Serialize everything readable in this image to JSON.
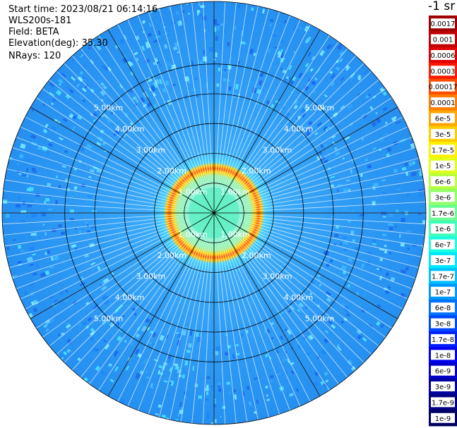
{
  "header": {
    "start_label": "Start time:",
    "start_value": "2023/08/21 06:14:16",
    "instrument": "WLS200s-181",
    "field_label": "Field:",
    "field_value": "BETA",
    "elevation_label": "Elevation(deg):",
    "elevation_value": "35.30",
    "nrays_label": "NRays:",
    "nrays_value": "120"
  },
  "colorbar": {
    "title": "-1 sr",
    "labels": [
      "0.0017",
      "0.001",
      "0.0006",
      "0.0003",
      "0.00017",
      "0.0001",
      "6e-5",
      "3e-5",
      "1.7e-5",
      "1e-5",
      "6e-6",
      "3e-6",
      "1.7e-6",
      "1e-6",
      "6e-7",
      "3e-7",
      "1.7e-7",
      "1e-7",
      "6e-8",
      "3e-8",
      "1.7e-8",
      "1e-8",
      "6e-9",
      "3e-9",
      "1.7e-9",
      "1e-9"
    ],
    "colors": [
      "#a00000",
      "#c00000",
      "#e00000",
      "#ff1800",
      "#ff4c00",
      "#ff7c00",
      "#ffa400",
      "#ffcc00",
      "#fff000",
      "#e0ff18",
      "#b8ff40",
      "#90ff68",
      "#68ff90",
      "#40ffb8",
      "#18ffe0",
      "#00e8ff",
      "#00c0ff",
      "#0098ff",
      "#0070ff",
      "#0048ff",
      "#0020ff",
      "#0000f0",
      "#0000c8",
      "#0000a0",
      "#000080",
      "#000060"
    ]
  },
  "chart_data": {
    "type": "polar-ppi",
    "field": "BETA",
    "units": "-1 sr",
    "rays": 120,
    "elevation_deg": 35.3,
    "range_rings_km": [
      1,
      2,
      3,
      4,
      5
    ],
    "ring_labels": [
      "1.00km",
      "2.00km",
      "3.00km",
      "4.00km",
      "5.00km"
    ],
    "max_range_km": 7.1,
    "spokes": 12,
    "color_scale": "log",
    "value_range": [
      1e-09,
      0.0017
    ],
    "bands": [
      {
        "range_km": [
          0,
          1.0
        ],
        "value": 3e-07
      },
      {
        "range_km": [
          1.0,
          1.55
        ],
        "value": 3e-05
      },
      {
        "range_km": [
          1.55,
          4.5
        ],
        "value": 1e-08
      },
      {
        "range_km": [
          4.5,
          7.1
        ],
        "value": 1e-08
      }
    ]
  }
}
